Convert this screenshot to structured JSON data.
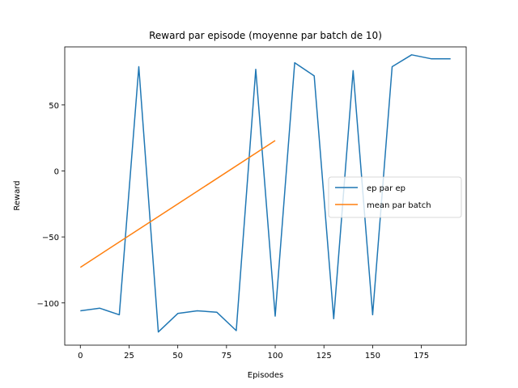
{
  "chart_data": {
    "type": "line",
    "title": "Reward par episode (moyenne par batch de 10)",
    "xlabel": "Episodes",
    "ylabel": "Reward",
    "xlim": [
      -8,
      198
    ],
    "ylim": [
      -132,
      94
    ],
    "xticks": [
      0,
      25,
      50,
      75,
      100,
      125,
      150,
      175
    ],
    "yticks": [
      -100,
      -50,
      0,
      50
    ],
    "ytick_labels": [
      "−100",
      "−50",
      "0",
      "50"
    ],
    "grid": false,
    "legend_position": "center-right",
    "series": [
      {
        "name": "ep par ep",
        "color": "#1f77b4",
        "x": [
          0,
          10,
          20,
          30,
          40,
          50,
          60,
          70,
          80,
          90,
          100,
          110,
          120,
          130,
          140,
          150,
          160,
          170,
          180,
          190
        ],
        "y": [
          -106,
          -104,
          -109,
          79,
          -122,
          -108,
          -106,
          -107,
          -121,
          77,
          -110,
          82,
          72,
          -112,
          76,
          -109,
          79,
          88,
          85,
          85
        ]
      },
      {
        "name": "mean par batch",
        "color": "#ff7f0e",
        "x": [
          0,
          100
        ],
        "y": [
          -73,
          23
        ]
      }
    ]
  }
}
